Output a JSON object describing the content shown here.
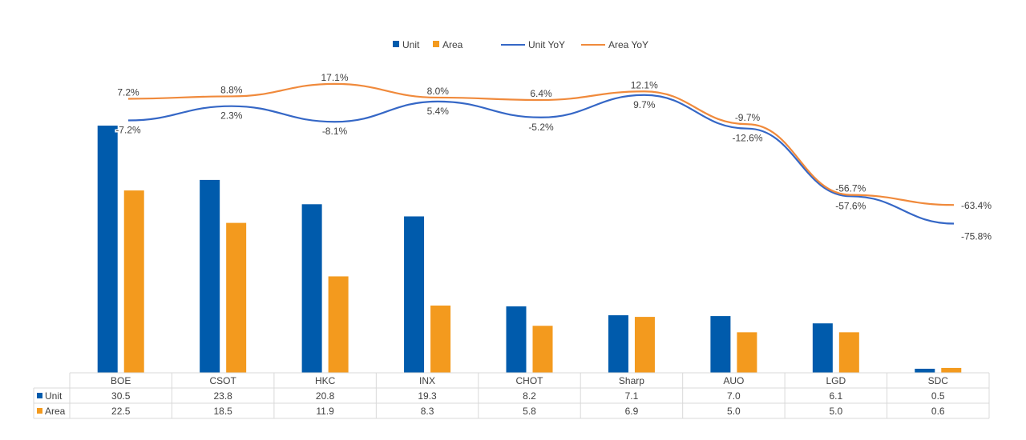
{
  "chart_data": {
    "type": "bar",
    "title": "",
    "categories": [
      "BOE",
      "CSOT",
      "HKC",
      "INX",
      "CHOT",
      "Sharp",
      "AUO",
      "LGD",
      "SDC"
    ],
    "series": [
      {
        "name": "Unit",
        "kind": "bar",
        "color": "#005BAC",
        "values": [
          30.5,
          23.8,
          20.8,
          19.3,
          8.2,
          7.1,
          7.0,
          6.1,
          0.5
        ]
      },
      {
        "name": "Area",
        "kind": "bar",
        "color": "#F39A1E",
        "values": [
          22.5,
          18.5,
          11.9,
          8.3,
          5.8,
          6.9,
          5.0,
          5.0,
          0.6
        ]
      },
      {
        "name": "Unit YoY",
        "kind": "line",
        "color": "#3567C6",
        "values": [
          -7.2,
          2.3,
          -8.1,
          5.4,
          -5.2,
          9.7,
          -12.6,
          -57.6,
          -75.8
        ],
        "labels": [
          "-7.2%",
          "2.3%",
          "-8.1%",
          "5.4%",
          "-5.2%",
          "9.7%",
          "-12.6%",
          "-57.6%",
          "-75.8%"
        ]
      },
      {
        "name": "Area YoY",
        "kind": "line",
        "color": "#F08A3C",
        "values": [
          7.2,
          8.8,
          17.1,
          8.0,
          6.4,
          12.1,
          -9.7,
          -56.7,
          -63.4
        ],
        "labels": [
          "7.2%",
          "8.8%",
          "17.1%",
          "8.0%",
          "6.4%",
          "12.1%",
          "-9.7%",
          "-56.7%",
          "-63.4%"
        ]
      }
    ],
    "legend": "top-center",
    "data_table": true,
    "table_rows": [
      {
        "label": "Unit",
        "values": [
          "30.5",
          "23.8",
          "20.8",
          "19.3",
          "8.2",
          "7.1",
          "7.0",
          "6.1",
          "0.5"
        ]
      },
      {
        "label": "Area",
        "values": [
          "22.5",
          "18.5",
          "11.9",
          "8.3",
          "5.8",
          "6.9",
          "5.0",
          "5.0",
          "0.6"
        ]
      }
    ],
    "grid": false
  }
}
